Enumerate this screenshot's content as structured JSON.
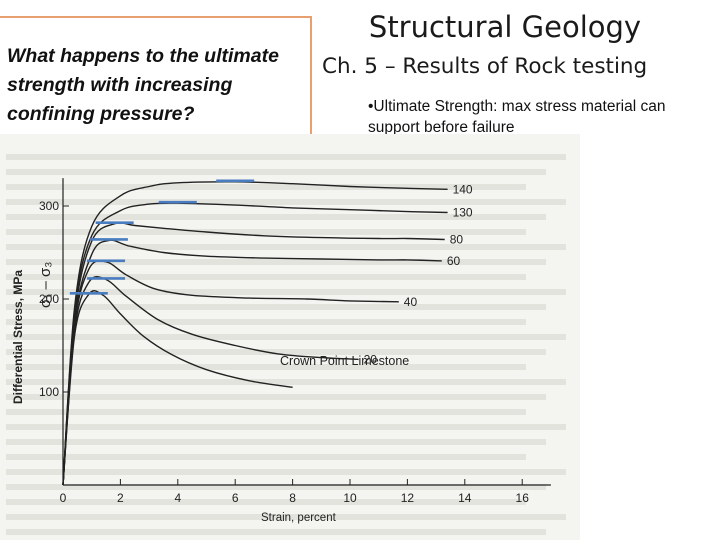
{
  "slide": {
    "question": "What happens to the ultimate strength with increasing confining pressure?",
    "title": "Structural Geology",
    "subtitle": "Ch. 5 – Results of Rock testing",
    "bullet": "•Ultimate Strength: max stress material can support before failure"
  },
  "annotation": {
    "sigma_label": "σ₁ – σ₃",
    "accent_color": "#4a7cc0"
  },
  "chart_data": {
    "type": "line",
    "title": "Crown Point Limestone",
    "xlabel": "Strain, percent",
    "ylabel": "Differential Stress, MPa",
    "xlim": [
      0,
      17
    ],
    "ylim": [
      0,
      330
    ],
    "x_ticks": [
      0,
      2,
      4,
      6,
      8,
      10,
      12,
      14,
      16
    ],
    "y_ticks": [
      100,
      200,
      300
    ],
    "series": [
      {
        "name": "140",
        "x": [
          0,
          0.4,
          1,
          2,
          3,
          4,
          6,
          8,
          10,
          12,
          13.4
        ],
        "y": [
          0,
          190,
          278,
          311,
          321,
          325,
          326,
          324,
          321,
          319,
          318
        ]
      },
      {
        "name": "130",
        "x": [
          0,
          0.4,
          1,
          2,
          3,
          4,
          6,
          8,
          10,
          12,
          13.4
        ],
        "y": [
          0,
          185,
          268,
          295,
          302,
          303,
          301,
          298,
          296,
          294,
          293
        ]
      },
      {
        "name": "80",
        "x": [
          0,
          0.4,
          1,
          1.8,
          2.5,
          3.5,
          5,
          7,
          9,
          11,
          12,
          13.3
        ],
        "y": [
          0,
          180,
          262,
          281,
          279,
          276,
          272,
          268,
          266,
          265,
          265,
          264
        ]
      },
      {
        "name": "60",
        "x": [
          0,
          0.4,
          1,
          1.6,
          2.3,
          3.5,
          5,
          7,
          9,
          11,
          12,
          13.2
        ],
        "y": [
          0,
          175,
          248,
          263,
          257,
          250,
          246,
          244,
          243,
          242,
          242,
          241
        ]
      },
      {
        "name": "40",
        "x": [
          0,
          0.4,
          0.9,
          1.5,
          2.2,
          3.2,
          4.5,
          6.5,
          8.5,
          10,
          11.7
        ],
        "y": [
          0,
          170,
          232,
          240,
          226,
          211,
          204,
          201,
          200,
          198,
          197
        ]
      },
      {
        "name": "20",
        "x": [
          0,
          0.4,
          0.9,
          1.5,
          2.2,
          3.3,
          4.5,
          6,
          7.5,
          9,
          10.3
        ],
        "y": [
          0,
          165,
          218,
          221,
          203,
          178,
          162,
          150,
          141,
          137,
          135
        ]
      },
      {
        "name": "",
        "x": [
          0,
          0.4,
          0.9,
          1.4,
          2,
          2.8,
          3.8,
          5,
          6.5,
          8
        ],
        "y": [
          0,
          160,
          205,
          204,
          184,
          160,
          140,
          124,
          112,
          105
        ]
      }
    ]
  }
}
